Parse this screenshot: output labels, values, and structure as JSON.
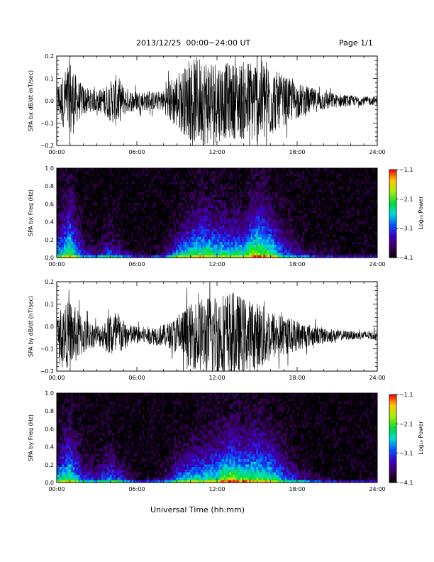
{
  "header": {
    "title": "2013/12/25  00:00−24:00 UT",
    "page": "Page 1/1"
  },
  "x_axis_title": "Universal Time (hh:mm)",
  "chart_data": [
    {
      "type": "line",
      "ylabel": "SPA bx dB/dt (nT/sec)",
      "ylim": [
        -0.2,
        0.2
      ],
      "yticks": [
        "0.2",
        "0.1",
        "0.0",
        "−0.1",
        "−0.2"
      ],
      "ytick_values": [
        0.2,
        0.1,
        0.0,
        -0.1,
        -0.2
      ],
      "xlim": [
        0,
        24
      ],
      "xticks": [
        "00:00",
        "06:00",
        "12:00",
        "18:00",
        "24:00"
      ],
      "xtick_values": [
        0,
        6,
        12,
        18,
        24
      ],
      "color": "#000000",
      "envelope": {
        "x": [
          0,
          0.5,
          1,
          1.5,
          2,
          2.5,
          3,
          3.5,
          4,
          4.5,
          5,
          5.5,
          6,
          6.5,
          7,
          7.5,
          8,
          8.5,
          9,
          9.5,
          10,
          10.5,
          11,
          11.5,
          12,
          12.5,
          13,
          13.5,
          14,
          14.5,
          15,
          15.5,
          16,
          16.5,
          17,
          17.5,
          18,
          18.5,
          19,
          19.5,
          20,
          20.5,
          21,
          21.5,
          22,
          22.5,
          23,
          23.5,
          24
        ],
        "amplitude": [
          0.07,
          0.12,
          0.2,
          0.1,
          0.07,
          0.05,
          0.05,
          0.06,
          0.09,
          0.12,
          0.07,
          0.05,
          0.045,
          0.045,
          0.045,
          0.04,
          0.05,
          0.1,
          0.13,
          0.15,
          0.18,
          0.2,
          0.2,
          0.2,
          0.19,
          0.17,
          0.17,
          0.17,
          0.18,
          0.19,
          0.2,
          0.2,
          0.17,
          0.13,
          0.11,
          0.1,
          0.08,
          0.07,
          0.06,
          0.05,
          0.045,
          0.04,
          0.03,
          0.028,
          0.025,
          0.022,
          0.02,
          0.02,
          0.02
        ]
      }
    },
    {
      "type": "heatmap",
      "ylabel": "SPA bx Freq (Hz)",
      "ylim": [
        0.0,
        1.0
      ],
      "yticks": [
        "1.0",
        "0.8",
        "0.6",
        "0.4",
        "0.2",
        "0.0"
      ],
      "ytick_values": [
        1.0,
        0.8,
        0.6,
        0.4,
        0.2,
        0.0
      ],
      "xlim": [
        0,
        24
      ],
      "xticks": [
        "00:00",
        "06:00",
        "12:00",
        "18:00",
        "24:00"
      ],
      "xtick_values": [
        0,
        6,
        12,
        18,
        24
      ],
      "colorbar": {
        "label": "Log₁₀ Power",
        "range": [
          -4.1,
          -1.1
        ],
        "ticks": [
          "−1.1",
          "−2.1",
          "−3.1",
          "−4.1"
        ],
        "tick_values": [
          -1.1,
          -2.1,
          -3.1,
          -4.1
        ]
      },
      "activity_profile": {
        "x": [
          0,
          1,
          2,
          3,
          4,
          5,
          6,
          7,
          8,
          9,
          10,
          11,
          12,
          13,
          14,
          15,
          16,
          17,
          18,
          19,
          20,
          21,
          22,
          23,
          24
        ],
        "peak_log_power": [
          -2.4,
          -1.9,
          -3.0,
          -3.2,
          -2.8,
          -3.1,
          -3.6,
          -3.7,
          -3.4,
          -2.4,
          -2.0,
          -1.9,
          -2.2,
          -2.2,
          -2.1,
          -1.6,
          -1.9,
          -2.8,
          -3.1,
          -3.5,
          -3.7,
          -3.8,
          -3.9,
          -3.9,
          -3.9
        ],
        "extent_hz": [
          0.5,
          0.9,
          0.3,
          0.2,
          0.4,
          0.2,
          0.1,
          0.1,
          0.2,
          0.4,
          0.6,
          0.7,
          0.7,
          0.6,
          0.6,
          0.9,
          0.7,
          0.5,
          0.3,
          0.2,
          0.15,
          0.12,
          0.1,
          0.1,
          0.1
        ]
      }
    },
    {
      "type": "line",
      "ylabel": "SPA by dB/dt (nT/sec)",
      "ylim": [
        -0.2,
        0.2
      ],
      "yticks": [
        "0.2",
        "0.1",
        "0.0",
        "−0.1",
        "−0.2"
      ],
      "ytick_values": [
        0.2,
        0.1,
        0.0,
        -0.1,
        -0.2
      ],
      "xlim": [
        0,
        24
      ],
      "xticks": [
        "00:00",
        "06:00",
        "12:00",
        "18:00",
        "24:00"
      ],
      "xtick_values": [
        0,
        6,
        12,
        18,
        24
      ],
      "color": "#000000",
      "offset": -0.04,
      "envelope": {
        "x": [
          0,
          0.5,
          1,
          1.5,
          2,
          2.5,
          3,
          3.5,
          4,
          4.5,
          5,
          5.5,
          6,
          6.5,
          7,
          7.5,
          8,
          8.5,
          9,
          9.5,
          10,
          10.5,
          11,
          11.5,
          12,
          12.5,
          13,
          13.5,
          14,
          14.5,
          15,
          15.5,
          16,
          16.5,
          17,
          17.5,
          18,
          18.5,
          19,
          19.5,
          20,
          20.5,
          21,
          21.5,
          22,
          22.5,
          23,
          23.5,
          24
        ],
        "amplitude": [
          0.08,
          0.13,
          0.16,
          0.12,
          0.09,
          0.06,
          0.05,
          0.06,
          0.1,
          0.12,
          0.07,
          0.05,
          0.04,
          0.04,
          0.04,
          0.045,
          0.05,
          0.06,
          0.09,
          0.12,
          0.14,
          0.16,
          0.17,
          0.18,
          0.2,
          0.2,
          0.2,
          0.19,
          0.17,
          0.16,
          0.15,
          0.16,
          0.12,
          0.1,
          0.09,
          0.08,
          0.07,
          0.06,
          0.05,
          0.04,
          0.035,
          0.03,
          0.025,
          0.022,
          0.02,
          0.02,
          0.02,
          0.02,
          0.02
        ]
      }
    },
    {
      "type": "heatmap",
      "ylabel": "SPA by Freq (Hz)",
      "ylim": [
        0.0,
        1.0
      ],
      "yticks": [
        "1.0",
        "0.8",
        "0.6",
        "0.4",
        "0.2",
        "0.0"
      ],
      "ytick_values": [
        1.0,
        0.8,
        0.6,
        0.4,
        0.2,
        0.0
      ],
      "xlim": [
        0,
        24
      ],
      "xticks": [
        "00:00",
        "06:00",
        "12:00",
        "18:00",
        "24:00"
      ],
      "xtick_values": [
        0,
        6,
        12,
        18,
        24
      ],
      "colorbar": {
        "label": "Log₁₀ Power",
        "range": [
          -4.1,
          -1.1
        ],
        "ticks": [
          "−1.1",
          "−2.1",
          "−3.1",
          "−4.1"
        ],
        "tick_values": [
          -1.1,
          -2.1,
          -3.1,
          -4.1
        ]
      },
      "activity_profile": {
        "x": [
          0,
          1,
          2,
          3,
          4,
          5,
          6,
          7,
          8,
          9,
          10,
          11,
          12,
          13,
          14,
          15,
          16,
          17,
          18,
          19,
          20,
          21,
          22,
          23,
          24
        ],
        "peak_log_power": [
          -2.3,
          -2.0,
          -2.9,
          -3.0,
          -2.6,
          -3.0,
          -3.6,
          -3.6,
          -3.3,
          -2.5,
          -2.2,
          -2.2,
          -2.1,
          -1.4,
          -1.8,
          -1.9,
          -2.0,
          -2.6,
          -3.0,
          -3.4,
          -3.6,
          -3.8,
          -3.9,
          -3.9,
          -3.9
        ],
        "extent_hz": [
          0.5,
          0.8,
          0.4,
          0.3,
          0.5,
          0.3,
          0.1,
          0.1,
          0.2,
          0.4,
          0.5,
          0.6,
          0.7,
          0.7,
          0.7,
          0.8,
          0.7,
          0.5,
          0.3,
          0.2,
          0.15,
          0.12,
          0.1,
          0.1,
          0.1
        ]
      }
    }
  ]
}
